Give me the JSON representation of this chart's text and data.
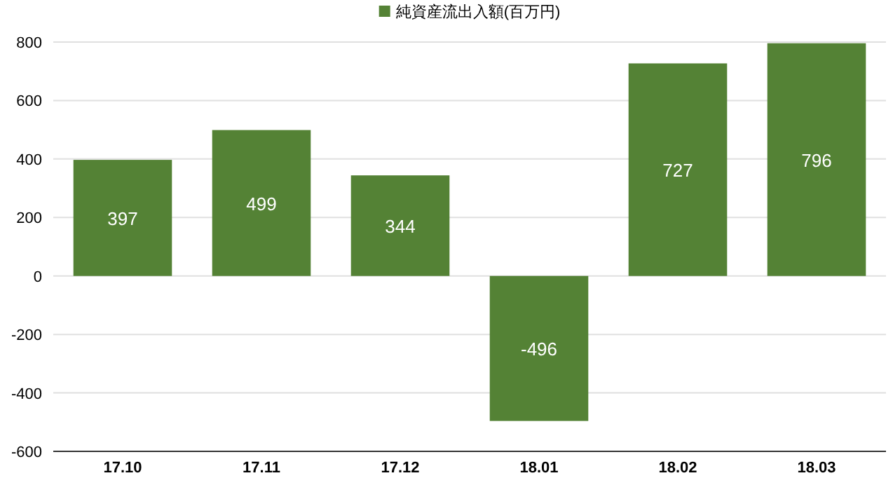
{
  "chart_data": {
    "type": "bar",
    "categories": [
      "17.10",
      "17.11",
      "17.12",
      "18.01",
      "18.02",
      "18.03"
    ],
    "series": [
      {
        "name": "純資産流出入額(百万円)",
        "color": "#548235",
        "values": [
          397,
          499,
          344,
          -496,
          727,
          796
        ]
      }
    ],
    "ylim": [
      -600,
      800
    ],
    "yticks": [
      -600,
      -400,
      -200,
      0,
      200,
      400,
      600,
      800
    ],
    "grid": "y",
    "legend": "top",
    "data_labels": true
  }
}
